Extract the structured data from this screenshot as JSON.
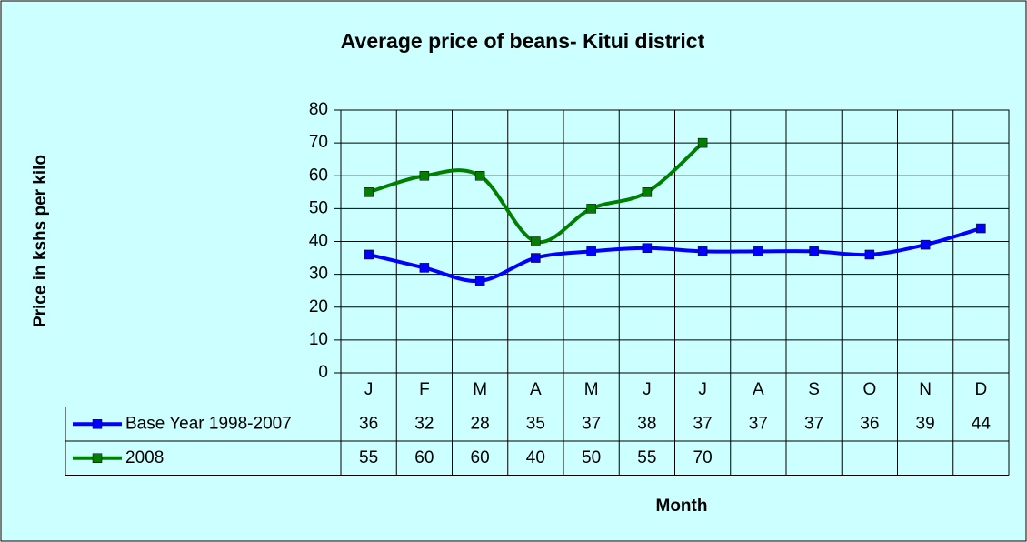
{
  "chart_data": {
    "type": "line",
    "title": "Average price of beans- Kitui district",
    "y_label": "Price in kshs per kilo",
    "x_label": "Month",
    "categories": [
      "J",
      "F",
      "M",
      "A",
      "M",
      "J",
      "J",
      "A",
      "S",
      "O",
      "N",
      "D"
    ],
    "series": [
      {
        "name": "Base Year 1998-2007",
        "color": "#0000ff",
        "values": [
          36,
          32,
          28,
          35,
          37,
          38,
          37,
          37,
          37,
          36,
          39,
          44
        ]
      },
      {
        "name": "2008",
        "color": "#008000",
        "values": [
          55,
          60,
          60,
          40,
          50,
          55,
          70,
          null,
          null,
          null,
          null,
          null
        ]
      }
    ],
    "ylim": [
      0,
      80
    ],
    "yticks": [
      0,
      10,
      20,
      30,
      40,
      50,
      60,
      70,
      80
    ],
    "grid": true
  }
}
